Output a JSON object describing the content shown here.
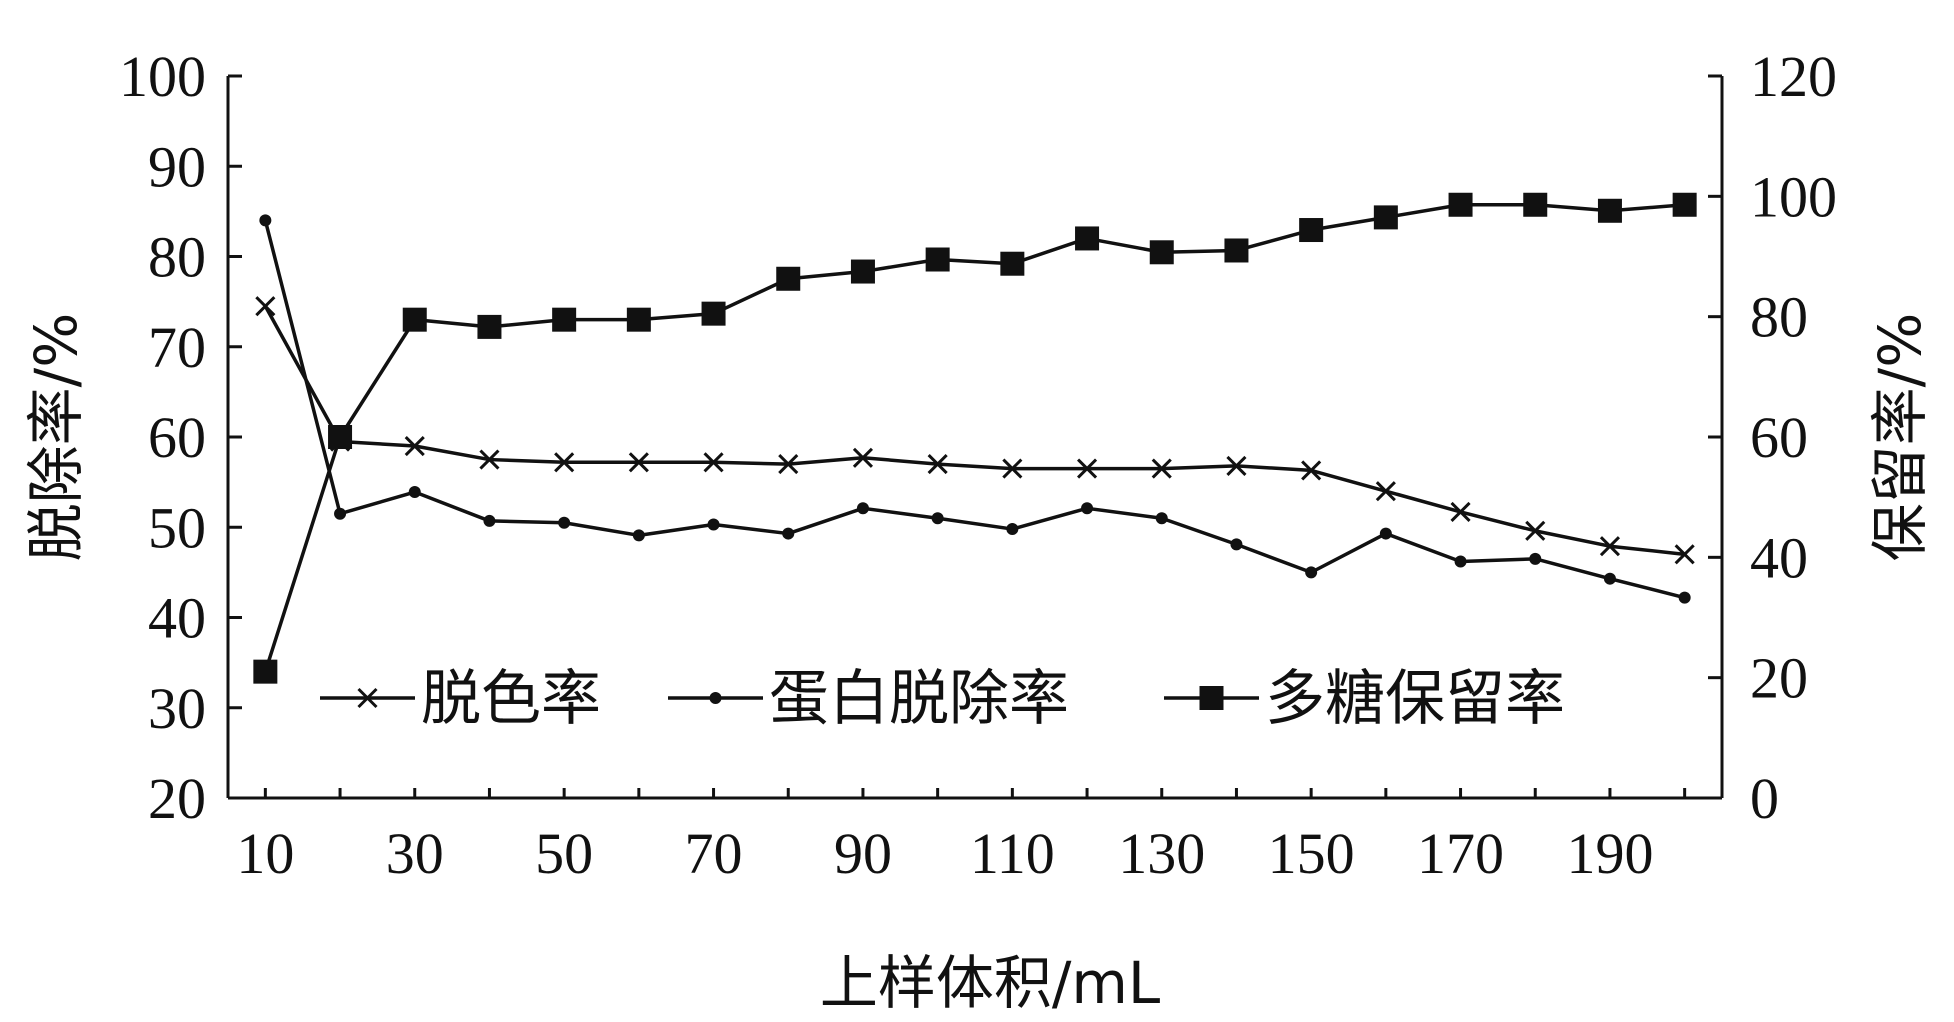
{
  "chart_data": {
    "type": "line",
    "xlabel": "上样体积/mL",
    "ylabel_left": "脱除率/%",
    "ylabel_right": "保留率/%",
    "xlim": [
      5,
      205
    ],
    "ylim_left": [
      20,
      100
    ],
    "ylim_right": [
      0,
      120
    ],
    "x_ticks": [
      10,
      30,
      50,
      70,
      90,
      110,
      130,
      150,
      170,
      190
    ],
    "y_ticks_left": [
      20,
      30,
      40,
      50,
      60,
      70,
      80,
      90,
      100
    ],
    "y_ticks_right": [
      0,
      20,
      40,
      60,
      80,
      100,
      120
    ],
    "grid": false,
    "legend_position": "center-bottom",
    "x": [
      10,
      20,
      30,
      40,
      50,
      60,
      70,
      80,
      90,
      100,
      110,
      120,
      130,
      140,
      150,
      160,
      170,
      180,
      190,
      200
    ],
    "series": [
      {
        "name": "脱色率",
        "axis": "left",
        "marker": "x",
        "values": [
          74.5,
          59.5,
          59,
          57.5,
          57.2,
          57.2,
          57.2,
          57,
          57.7,
          57,
          56.5,
          56.5,
          56.5,
          56.8,
          56.3,
          54,
          51.7,
          49.6,
          47.9,
          47
        ]
      },
      {
        "name": "蛋白脱除率",
        "axis": "left",
        "marker": "dot",
        "values": [
          84,
          51.5,
          53.9,
          50.7,
          50.5,
          49.1,
          50.3,
          49.3,
          52.1,
          51,
          49.8,
          52.1,
          51,
          48.1,
          45,
          49.3,
          46.2,
          46.5,
          44.3,
          42.2
        ]
      },
      {
        "name": "多糖保留率",
        "axis": "right",
        "marker": "square",
        "values": [
          21,
          60,
          79.5,
          78.3,
          79.5,
          79.5,
          80.5,
          86.3,
          87.5,
          89.5,
          88.8,
          93,
          90.7,
          91,
          94.4,
          96.5,
          98.6,
          98.6,
          97.6,
          98.6
        ]
      }
    ]
  }
}
